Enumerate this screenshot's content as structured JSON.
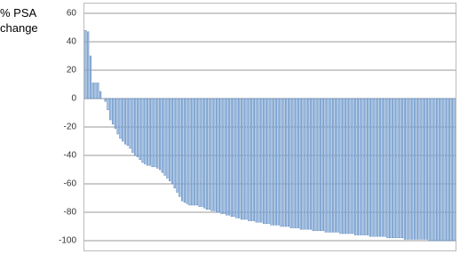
{
  "chart_data": {
    "type": "bar",
    "ylabel": "% PSA change",
    "values": [
      48,
      47,
      30,
      11,
      11,
      11,
      5,
      0,
      -2,
      -8,
      -15,
      -18,
      -21,
      -25,
      -28,
      -30,
      -32,
      -33,
      -35,
      -38,
      -40,
      -41,
      -43,
      -45,
      -46,
      -47,
      -47,
      -48,
      -48,
      -49,
      -50,
      -52,
      -54,
      -56,
      -58,
      -60,
      -63,
      -66,
      -69,
      -72,
      -73,
      -74,
      -75,
      -75,
      -75,
      -75,
      -76,
      -76,
      -77,
      -78,
      -78,
      -79,
      -79,
      -80,
      -80,
      -81,
      -81,
      -82,
      -82,
      -83,
      -83,
      -84,
      -84,
      -85,
      -85,
      -85,
      -86,
      -86,
      -86,
      -87,
      -87,
      -87,
      -88,
      -88,
      -88,
      -89,
      -89,
      -89,
      -89,
      -90,
      -90,
      -90,
      -90,
      -91,
      -91,
      -91,
      -91,
      -92,
      -92,
      -92,
      -92,
      -92,
      -93,
      -93,
      -93,
      -93,
      -93,
      -94,
      -94,
      -94,
      -94,
      -94,
      -94,
      -95,
      -95,
      -95,
      -95,
      -95,
      -95,
      -96,
      -96,
      -96,
      -96,
      -96,
      -96,
      -97,
      -97,
      -97,
      -97,
      -97,
      -97,
      -97,
      -98,
      -98,
      -98,
      -98,
      -98,
      -98,
      -98,
      -99,
      -99,
      -99,
      -99,
      -99,
      -99,
      -99,
      -99,
      -99,
      -99,
      -100,
      -100,
      -100,
      -100,
      -100,
      -100,
      -100,
      -100,
      -100,
      -100,
      -100
    ],
    "color": "#a9c3e3",
    "edge_color": "#4f81bd",
    "ylim": [
      -100,
      60
    ],
    "yticks": [
      60,
      40,
      20,
      0,
      -20,
      -40,
      -60,
      -80,
      -100
    ],
    "grid": true
  }
}
